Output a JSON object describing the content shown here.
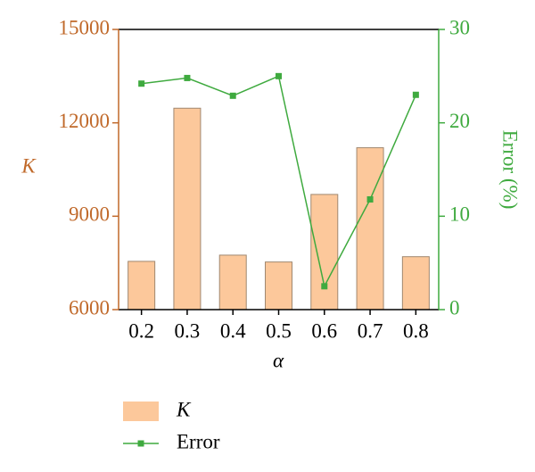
{
  "chart_data": {
    "type": "bar",
    "xlabel": "α",
    "ylabel": "K",
    "y2label": "Error (%)",
    "categories": [
      "0.2",
      "0.3",
      "0.4",
      "0.5",
      "0.6",
      "0.7",
      "0.8"
    ],
    "series": [
      {
        "name": "K",
        "type": "bar",
        "color": "#fcc89b",
        "values": [
          7550,
          12470,
          7750,
          7530,
          9700,
          11200,
          7700
        ]
      },
      {
        "name": "Error",
        "type": "line",
        "axis": "y2",
        "color": "#3faa3f",
        "values": [
          24.2,
          24.8,
          22.9,
          25.0,
          2.5,
          11.8,
          23.0
        ]
      }
    ],
    "ylim": [
      6000,
      15000
    ],
    "yticks": [
      6000,
      9000,
      12000,
      15000
    ],
    "y2lim": [
      0,
      30
    ],
    "y2ticks": [
      0,
      10,
      20,
      30
    ],
    "ycolor": "#c0692a",
    "y2color": "#3faa3f"
  }
}
